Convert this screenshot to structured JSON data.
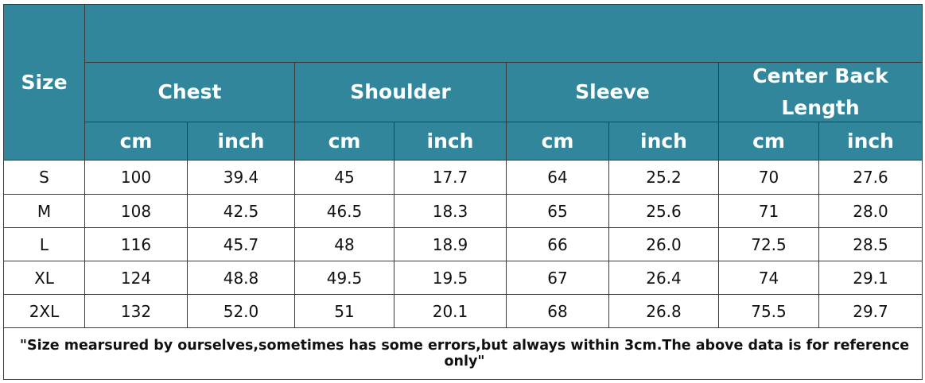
{
  "header": {
    "size": "Size",
    "groups": [
      "Chest",
      "Shoulder",
      "Sleeve",
      "Center Back Length"
    ],
    "units": [
      "cm",
      "inch",
      "cm",
      "inch",
      "cm",
      "inch",
      "cm",
      "inch"
    ]
  },
  "table": {
    "rows": [
      [
        "S",
        "100",
        "39.4",
        "45",
        "17.7",
        "64",
        "25.2",
        "70",
        "27.6"
      ],
      [
        "M",
        "108",
        "42.5",
        "46.5",
        "18.3",
        "65",
        "25.6",
        "71",
        "28.0"
      ],
      [
        "L",
        "116",
        "45.7",
        "48",
        "18.9",
        "66",
        "26.0",
        "72.5",
        "28.5"
      ],
      [
        "XL",
        "124",
        "48.8",
        "49.5",
        "19.5",
        "67",
        "26.4",
        "74",
        "29.1"
      ],
      [
        "2XL",
        "132",
        "52.0",
        "51",
        "20.1",
        "68",
        "26.8",
        "75.5",
        "29.7"
      ]
    ]
  },
  "footnote": "\"Size mearsured by ourselves,sometimes has some errors,but always within 3cm.The above data is for reference only\""
}
